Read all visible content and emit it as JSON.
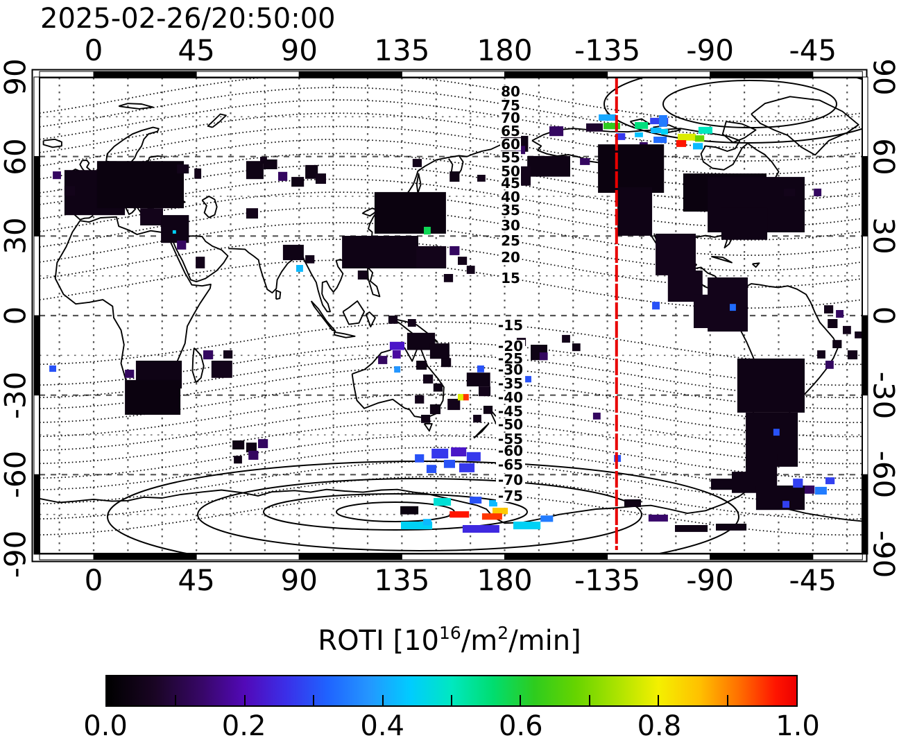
{
  "title": "2025-02-26/20:50:00",
  "axes": {
    "top": [
      "0",
      "45",
      "90",
      "135",
      "180",
      "-135",
      "-90",
      "-45"
    ],
    "bottom": [
      "0",
      "45",
      "90",
      "135",
      "180",
      "-135",
      "-90",
      "-45"
    ],
    "left": [
      "90",
      "60",
      "30",
      "0",
      "-30",
      "-60",
      "-90"
    ],
    "right": [
      "90",
      "60",
      "30",
      "0",
      "-30",
      "-60",
      "-90"
    ]
  },
  "contour_labels": {
    "north": [
      {
        "v": "80",
        "lat": 84.5
      },
      {
        "v": "75",
        "lat": 79.3
      },
      {
        "v": "70",
        "lat": 74.6
      },
      {
        "v": "65",
        "lat": 69.6
      },
      {
        "v": "60",
        "lat": 64.6
      },
      {
        "v": "55",
        "lat": 59.7
      },
      {
        "v": "50",
        "lat": 54.4
      },
      {
        "v": "45",
        "lat": 50.0
      },
      {
        "v": "40",
        "lat": 44.7
      },
      {
        "v": "35",
        "lat": 39.8
      },
      {
        "v": "30",
        "lat": 34.0
      },
      {
        "v": "25",
        "lat": 28.3
      },
      {
        "v": "20",
        "lat": 22.0
      },
      {
        "v": "15",
        "lat": 14.1
      }
    ],
    "south": [
      {
        "v": "-15",
        "lat": -3.7
      },
      {
        "v": "-20",
        "lat": -11.5
      },
      {
        "v": "-25",
        "lat": -16.2
      },
      {
        "v": "-30",
        "lat": -20.4
      },
      {
        "v": "-35",
        "lat": -25.6
      },
      {
        "v": "-40",
        "lat": -30.9
      },
      {
        "v": "-45",
        "lat": -36.1
      },
      {
        "v": "-50",
        "lat": -41.1
      },
      {
        "v": "-55",
        "lat": -46.6
      },
      {
        "v": "-60",
        "lat": -51.0
      },
      {
        "v": "-65",
        "lat": -56.3
      },
      {
        "v": "-70",
        "lat": -62.0
      },
      {
        "v": "-75",
        "lat": -68.0
      }
    ]
  },
  "red_meridian": {
    "plot_lon": 229,
    "color": "#e80000"
  },
  "colorbar": {
    "title_p1": "ROTI  [10",
    "title_sup1": "16",
    "title_p2": "/m",
    "title_sup2": "2",
    "title_p3": "/min]",
    "ticks": [
      "0.0",
      "0.2",
      "0.4",
      "0.6",
      "0.8",
      "1.0"
    ],
    "stops": [
      [
        0.0,
        "#000000"
      ],
      [
        0.07,
        "#1a0524"
      ],
      [
        0.14,
        "#38076a"
      ],
      [
        0.2,
        "#5209b8"
      ],
      [
        0.26,
        "#3b2fe8"
      ],
      [
        0.32,
        "#1f63ff"
      ],
      [
        0.38,
        "#2496ff"
      ],
      [
        0.44,
        "#00ccff"
      ],
      [
        0.5,
        "#00e8c0"
      ],
      [
        0.56,
        "#00dd70"
      ],
      [
        0.62,
        "#2ecc1e"
      ],
      [
        0.68,
        "#66d400"
      ],
      [
        0.74,
        "#abe300"
      ],
      [
        0.8,
        "#f4f000"
      ],
      [
        0.86,
        "#ffc000"
      ],
      [
        0.92,
        "#ff6a00"
      ],
      [
        0.97,
        "#ff1500"
      ],
      [
        1.0,
        "#ec0000"
      ]
    ]
  },
  "chart_data": {
    "type": "heatmap",
    "timestamp": "2025-02-26/20:50:00",
    "x_axis": "geographic longitude (deg, plot domain -24..337)",
    "y_axis": "geographic latitude (deg)",
    "xlim": [
      -24,
      337
    ],
    "ylim": [
      -90,
      90
    ],
    "value_label": "ROTI [10^16/m^2/min]",
    "value_range": [
      0,
      1
    ],
    "grid": "15 deg graticule, dashed",
    "contours": "magnetic latitude, dotted, 5 deg steps, labeled 80..15 and -15..-75 near lon 182",
    "points": [
      [
        -12.8,
        54.9,
        26.5,
        17.0,
        0.04
      ],
      [
        1.5,
        58.3,
        38.0,
        17.8,
        0.03
      ],
      [
        20.4,
        40.5,
        10.0,
        6.5,
        0.05
      ],
      [
        29.5,
        37.9,
        12.2,
        10.5,
        0.04
      ],
      [
        -17.9,
        54.4,
        3.6,
        2.9,
        0.13
      ],
      [
        -12.8,
        48.9,
        4.6,
        3.7,
        0.05
      ],
      [
        36.5,
        28.3,
        4.0,
        3.4,
        0.13
      ],
      [
        44.7,
        22.2,
        4.0,
        4.4,
        0.05
      ],
      [
        66.8,
        40.5,
        5.2,
        3.9,
        0.05
      ],
      [
        72.9,
        59.9,
        3.0,
        2.6,
        0.05
      ],
      [
        36.5,
        57.0,
        5.2,
        3.4,
        0.05
      ],
      [
        44.1,
        55.5,
        3.0,
        3.9,
        0.05
      ],
      [
        66.8,
        58.3,
        7.6,
        6.8,
        0.04
      ],
      [
        34.6,
        32.2,
        1.5,
        1.3,
        0.45
      ],
      [
        74.4,
        58.9,
        6.0,
        3.7,
        0.04
      ],
      [
        80.8,
        54.2,
        4.0,
        3.4,
        0.13
      ],
      [
        86.6,
        52.3,
        5.5,
        3.7,
        0.04
      ],
      [
        92.7,
        56.8,
        5.5,
        5.2,
        0.04
      ],
      [
        97.2,
        53.6,
        4.6,
        3.9,
        0.05
      ],
      [
        178.3,
        67.8,
        12.0,
        6.0,
        0.04
      ],
      [
        189.9,
        60.2,
        18.8,
        7.8,
        0.04
      ],
      [
        180.8,
        56.3,
        10.6,
        7.3,
        0.05
      ],
      [
        185.0,
        64.0,
        4.0,
        3.1,
        0.13
      ],
      [
        139.7,
        59.1,
        4.0,
        3.1,
        0.05
      ],
      [
        155.9,
        54.4,
        4.3,
        3.9,
        0.04
      ],
      [
        168.0,
        53.1,
        3.6,
        2.6,
        0.05
      ],
      [
        123.0,
        46.6,
        31.3,
        15.7,
        0.03
      ],
      [
        108.8,
        30.1,
        33.4,
        12.3,
        0.04
      ],
      [
        141.3,
        26.2,
        13.1,
        8.4,
        0.05
      ],
      [
        115.7,
        17.0,
        4.3,
        3.4,
        0.05
      ],
      [
        144.6,
        33.5,
        3.0,
        2.9,
        0.58
      ],
      [
        155.9,
        26.2,
        4.3,
        3.4,
        0.13
      ],
      [
        159.5,
        22.2,
        4.0,
        3.1,
        0.05
      ],
      [
        163.4,
        18.8,
        3.6,
        3.1,
        0.05
      ],
      [
        153.4,
        15.7,
        4.0,
        3.1,
        0.05
      ],
      [
        82.9,
        26.7,
        9.1,
        5.8,
        0.04
      ],
      [
        88.7,
        19.1,
        3.0,
        2.6,
        0.42
      ],
      [
        92.7,
        22.8,
        4.0,
        3.1,
        0.05
      ],
      [
        129.1,
        0.0,
        4.0,
        3.1,
        0.05
      ],
      [
        137.6,
        -1.3,
        3.6,
        2.9,
        0.05
      ],
      [
        221.2,
        75.9,
        7.6,
        2.4,
        0.4
      ],
      [
        223.3,
        72.7,
        7.3,
        2.4,
        0.62
      ],
      [
        237.0,
        73.0,
        5.8,
        2.6,
        0.55
      ],
      [
        243.7,
        74.6,
        7.9,
        2.4,
        0.28
      ],
      [
        244.0,
        70.9,
        4.6,
        2.1,
        0.42
      ],
      [
        248.5,
        70.4,
        3.0,
        2.1,
        0.45
      ],
      [
        228.8,
        68.8,
        4.0,
        2.6,
        0.27
      ],
      [
        237.0,
        69.1,
        3.6,
        1.8,
        0.43
      ],
      [
        245.2,
        67.5,
        5.8,
        2.4,
        0.33
      ],
      [
        255.8,
        68.6,
        7.9,
        2.6,
        0.78
      ],
      [
        263.4,
        68.0,
        4.0,
        2.4,
        0.68
      ],
      [
        255.2,
        66.2,
        4.3,
        2.6,
        0.97
      ],
      [
        262.5,
        65.1,
        4.3,
        2.4,
        0.42
      ],
      [
        264.9,
        71.2,
        6.1,
        2.6,
        0.5
      ],
      [
        247.6,
        75.6,
        3.6,
        4.4,
        0.35
      ],
      [
        215.7,
        72.5,
        7.3,
        3.1,
        0.08
      ],
      [
        199.6,
        71.4,
        6.1,
        3.7,
        0.13
      ],
      [
        229.4,
        60.2,
        4.9,
        3.9,
        0.04
      ],
      [
        239.1,
        65.4,
        3.6,
        2.6,
        0.13
      ],
      [
        213.0,
        59.4,
        4.3,
        2.6,
        0.13
      ],
      [
        286.5,
        44.0,
        3.0,
        2.1,
        0.3
      ],
      [
        237.6,
        45.8,
        3.6,
        3.1,
        0.3
      ],
      [
        232.4,
        55.5,
        4.0,
        3.4,
        0.15
      ],
      [
        240.6,
        34.5,
        3.0,
        2.9,
        0.88
      ],
      [
        285.9,
        34.8,
        4.0,
        3.1,
        0.32
      ],
      [
        295.0,
        44.5,
        3.6,
        2.9,
        0.45
      ],
      [
        220.9,
        64.6,
        28.9,
        18.3,
        0.03
      ],
      [
        229.4,
        48.4,
        15.2,
        18.3,
        0.04
      ],
      [
        258.2,
        53.6,
        36.5,
        14.4,
        0.03
      ],
      [
        268.9,
        52.3,
        42.5,
        20.9,
        0.04
      ],
      [
        246.1,
        30.9,
        17.6,
        15.7,
        0.05
      ],
      [
        251.5,
        17.0,
        15.2,
        11.8,
        0.05
      ],
      [
        262.8,
        7.9,
        18.8,
        12.6,
        0.05
      ],
      [
        274.9,
        40.6,
        20.1,
        12.0,
        0.04
      ],
      [
        315.4,
        47.9,
        3.3,
        2.9,
        0.13
      ],
      [
        302.3,
        47.9,
        4.9,
        2.9,
        0.05
      ],
      [
        278.3,
        5.0,
        4.0,
        3.1,
        0.3
      ],
      [
        244.6,
        5.2,
        3.3,
        2.9,
        0.3
      ],
      [
        268.9,
        14.4,
        17.6,
        20.4,
        0.05
      ],
      [
        278.6,
        4.4,
        2.7,
        2.6,
        0.33
      ],
      [
        281.9,
        -16.2,
        29.5,
        20.4,
        0.04
      ],
      [
        285.6,
        -36.6,
        22.8,
        20.4,
        0.04
      ],
      [
        285.6,
        -52.3,
        13.7,
        11.8,
        0.04
      ],
      [
        297.7,
        -42.7,
        2.7,
        2.6,
        0.3
      ],
      [
        319.9,
        3.9,
        4.0,
        3.1,
        0.05
      ],
      [
        325.1,
        2.1,
        3.3,
        2.9,
        0.13
      ],
      [
        321.5,
        -1.3,
        4.3,
        3.4,
        0.04
      ],
      [
        328.1,
        -3.9,
        3.6,
        3.1,
        0.05
      ],
      [
        323.6,
        -9.2,
        4.0,
        3.1,
        0.04
      ],
      [
        330.2,
        -13.1,
        4.3,
        3.4,
        0.05
      ],
      [
        320.5,
        -17.0,
        3.6,
        3.1,
        0.13
      ],
      [
        333.3,
        -6.0,
        3.6,
        2.6,
        0.05
      ],
      [
        316.9,
        -13.1,
        3.6,
        3.1,
        0.05
      ],
      [
        -19.4,
        -18.8,
        3.0,
        2.4,
        0.3
      ],
      [
        18.5,
        -17.0,
        20.1,
        10.5,
        0.04
      ],
      [
        13.7,
        -24.3,
        24.3,
        13.1,
        0.03
      ],
      [
        13.7,
        -20.4,
        4.0,
        3.1,
        0.13
      ],
      [
        48.0,
        -13.1,
        4.3,
        3.4,
        0.13
      ],
      [
        51.6,
        -17.0,
        9.1,
        6.5,
        0.05
      ],
      [
        56.8,
        -13.1,
        4.0,
        3.1,
        0.05
      ],
      [
        129.7,
        -9.9,
        6.4,
        3.1,
        0.22
      ],
      [
        130.9,
        -13.1,
        3.6,
        3.1,
        0.18
      ],
      [
        137.3,
        -6.5,
        12.2,
        6.5,
        0.04
      ],
      [
        147.3,
        -10.5,
        8.5,
        5.8,
        0.04
      ],
      [
        131.6,
        -19.1,
        2.7,
        2.4,
        0.38
      ],
      [
        124.6,
        -15.2,
        4.0,
        3.1,
        0.13
      ],
      [
        141.3,
        -17.0,
        4.6,
        3.4,
        0.04
      ],
      [
        152.2,
        -16.0,
        4.3,
        3.4,
        0.04
      ],
      [
        144.3,
        -22.2,
        4.3,
        3.4,
        0.05
      ],
      [
        148.8,
        -25.6,
        4.0,
        3.1,
        0.04
      ],
      [
        140.7,
        -30.1,
        4.0,
        3.1,
        0.05
      ],
      [
        147.3,
        -33.5,
        4.6,
        3.7,
        0.04
      ],
      [
        143.4,
        -37.4,
        4.0,
        3.1,
        0.04
      ],
      [
        155.0,
        -31.4,
        5.5,
        4.2,
        0.05
      ],
      [
        163.4,
        -21.5,
        10.3,
        5.2,
        0.04
      ],
      [
        168.6,
        -26.7,
        5.2,
        3.7,
        0.05
      ],
      [
        168.0,
        -18.8,
        3.0,
        2.6,
        0.3
      ],
      [
        189.0,
        -22.8,
        2.7,
        2.4,
        0.3
      ],
      [
        185.3,
        -8.4,
        4.0,
        3.1,
        0.05
      ],
      [
        191.4,
        -11.0,
        7.3,
        5.8,
        0.04
      ],
      [
        195.3,
        -13.9,
        3.6,
        2.9,
        0.13
      ],
      [
        205.1,
        -7.3,
        3.6,
        2.9,
        0.05
      ],
      [
        209.6,
        -10.5,
        3.6,
        2.9,
        0.04
      ],
      [
        159.5,
        -29.6,
        2.7,
        2.4,
        0.78
      ],
      [
        161.9,
        -29.6,
        2.4,
        2.4,
        0.95
      ],
      [
        170.7,
        -34.0,
        4.0,
        3.1,
        0.04
      ],
      [
        166.2,
        -37.4,
        3.6,
        2.9,
        0.05
      ],
      [
        218.7,
        -36.6,
        3.3,
        2.6,
        0.13
      ],
      [
        60.8,
        -47.1,
        5.2,
        3.4,
        0.04
      ],
      [
        66.8,
        -47.9,
        4.6,
        3.7,
        0.04
      ],
      [
        72.0,
        -46.6,
        4.3,
        3.4,
        0.13
      ],
      [
        67.8,
        -51.0,
        4.3,
        3.4,
        0.13
      ],
      [
        61.4,
        -52.9,
        3.6,
        2.9,
        0.04
      ],
      [
        148.0,
        -50.2,
        7.3,
        3.7,
        0.27
      ],
      [
        156.5,
        -49.7,
        6.7,
        3.4,
        0.22
      ],
      [
        163.4,
        -51.5,
        6.1,
        3.4,
        0.27
      ],
      [
        153.4,
        -54.4,
        4.9,
        3.1,
        0.3
      ],
      [
        160.1,
        -55.7,
        6.7,
        3.4,
        0.27
      ],
      [
        145.8,
        -56.3,
        4.3,
        3.1,
        0.3
      ],
      [
        140.7,
        -52.3,
        4.0,
        3.1,
        0.3
      ],
      [
        148.9,
        -68.8,
        7.6,
        2.9,
        0.48
      ],
      [
        134.3,
        -71.9,
        7.9,
        3.1,
        0.03
      ],
      [
        155.9,
        -73.8,
        8.5,
        2.4,
        0.97
      ],
      [
        134.6,
        -77.7,
        13.7,
        2.9,
        0.45
      ],
      [
        144.3,
        -76.7,
        3.6,
        2.4,
        0.42
      ],
      [
        161.6,
        -79.0,
        16.1,
        2.9,
        0.25
      ],
      [
        174.7,
        -72.5,
        6.7,
        2.4,
        0.85
      ],
      [
        170.1,
        -74.6,
        8.8,
        2.4,
        0.95
      ],
      [
        173.2,
        -69.6,
        3.6,
        2.4,
        0.42
      ],
      [
        164.7,
        -68.3,
        5.2,
        2.6,
        0.3
      ],
      [
        183.8,
        -77.7,
        11.9,
        2.9,
        0.45
      ],
      [
        195.7,
        -75.4,
        5.5,
        2.4,
        0.35
      ],
      [
        227.9,
        -52.6,
        3.0,
        2.6,
        0.3
      ],
      [
        243.0,
        -75.1,
        8.5,
        2.6,
        0.14
      ],
      [
        254.6,
        -79.0,
        14.3,
        2.6,
        0.04
      ],
      [
        272.5,
        -78.5,
        13.4,
        2.6,
        0.04
      ],
      [
        279.5,
        -58.9,
        18.0,
        8.0,
        0.04
      ],
      [
        290.1,
        -64.1,
        21.3,
        9.2,
        0.04
      ],
      [
        232.4,
        -69.3,
        7.3,
        2.9,
        0.04
      ],
      [
        306.3,
        -61.5,
        4.3,
        3.4,
        0.28
      ],
      [
        320.5,
        -61.0,
        4.0,
        2.6,
        0.28
      ],
      [
        315.9,
        -64.6,
        5.2,
        2.9,
        0.35
      ],
      [
        301.7,
        -69.9,
        3.0,
        2.6,
        0.28
      ],
      [
        311.4,
        -64.1,
        4.3,
        3.1,
        0.13
      ],
      [
        270.4,
        -61.5,
        9.1,
        4.2,
        0.04
      ]
    ]
  }
}
